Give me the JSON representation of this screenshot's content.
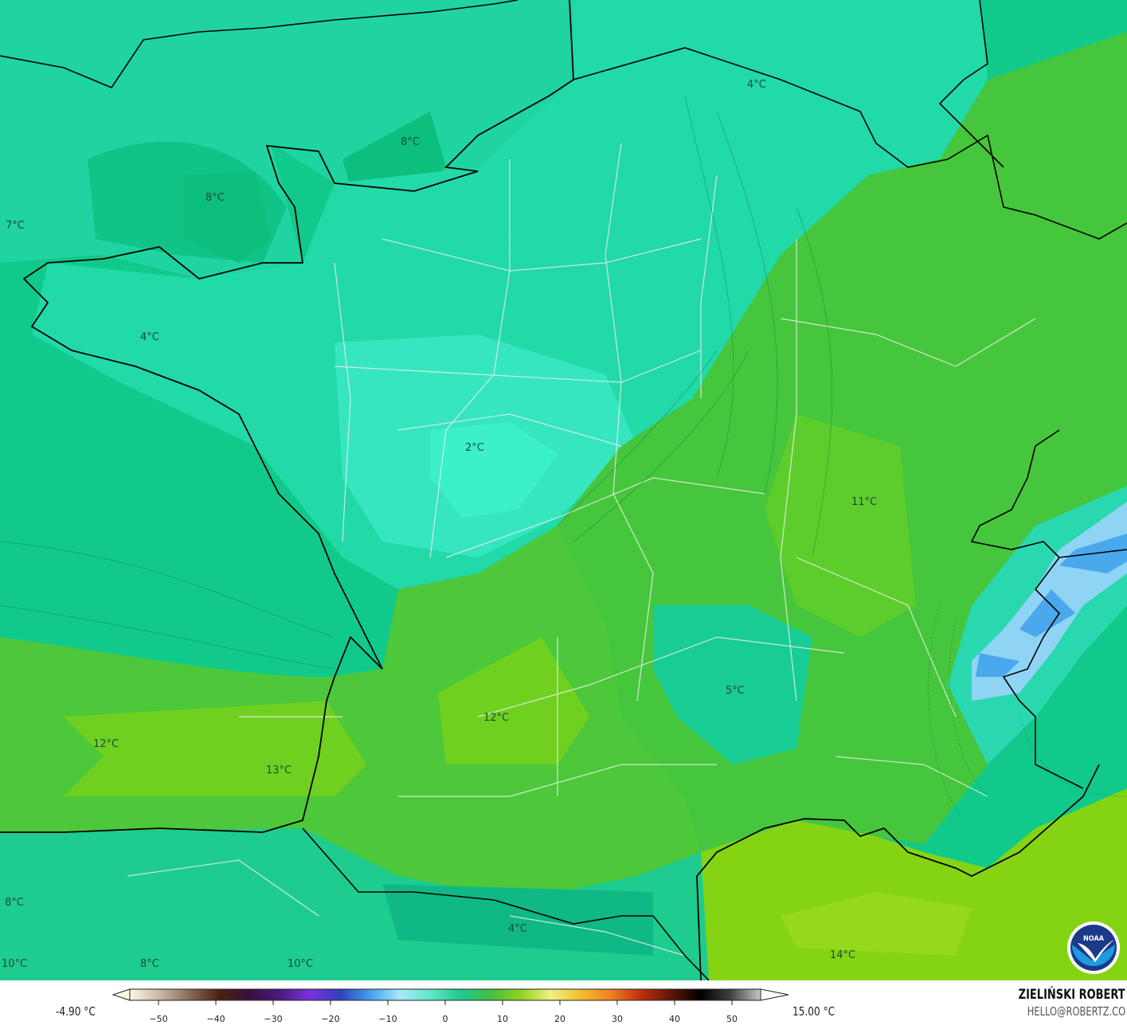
{
  "map": {
    "temperature_labels": [
      "4°C",
      "8°C",
      "8°C",
      "7°C",
      "4°C",
      "2°C",
      "11°C",
      "5°C",
      "12°C",
      "12°C",
      "13°C",
      "8°C",
      "4°C",
      "14°C",
      "10°C",
      "8°C",
      "10°C"
    ],
    "colors": {
      "sea_base": "#12c98c",
      "north_cyan": "#20d8a6",
      "central_light": "#38e8c4",
      "green": "#4cc83a",
      "yellow_green": "#78d21c",
      "mediterranean": "#86d414",
      "alps_blue": "#5ab8f0",
      "alps_deep": "#2a90e0"
    },
    "logo": "NOAA"
  },
  "legend": {
    "min_label": "-4.90 °C",
    "max_label": "15.00 °C",
    "ticks": [
      -50,
      -40,
      -30,
      -20,
      -10,
      0,
      10,
      20,
      30,
      40,
      50
    ],
    "range": [
      -55,
      55
    ],
    "stops": [
      "#fbf6e4",
      "#c9b8a4",
      "#8a6a55",
      "#4a2010",
      "#3a1040",
      "#4a1a80",
      "#7a30e0",
      "#3040c0",
      "#40a0f0",
      "#a8e8f8",
      "#60e8c8",
      "#20c890",
      "#40c040",
      "#90d020",
      "#f0f080",
      "#f0c030",
      "#f08020",
      "#c03010",
      "#601808",
      "#000000",
      "#404040",
      "#c8c8c8"
    ],
    "author": "ZIELIŃSKI ROBERT",
    "email": "HELLO@ROBERTZ.CO"
  }
}
